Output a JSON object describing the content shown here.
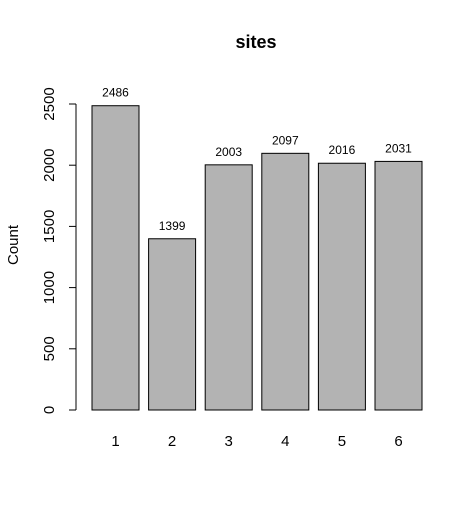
{
  "chart_data": {
    "type": "bar",
    "title": "sites",
    "xlabel": "",
    "ylabel": "Count",
    "categories": [
      "1",
      "2",
      "3",
      "4",
      "5",
      "6"
    ],
    "values": [
      2486,
      1399,
      2003,
      2097,
      2016,
      2031
    ],
    "data_labels": [
      "2486",
      "1399",
      "2003",
      "2097",
      "2016",
      "2031"
    ],
    "ylim": [
      0,
      2500
    ],
    "y_ticks": [
      0,
      500,
      1000,
      1500,
      2000,
      2500
    ],
    "y_tick_labels": [
      "0",
      "500",
      "1000",
      "1500",
      "2000",
      "2500"
    ],
    "bar_color": "#b3b3b3",
    "grid": false,
    "legend": "none"
  }
}
